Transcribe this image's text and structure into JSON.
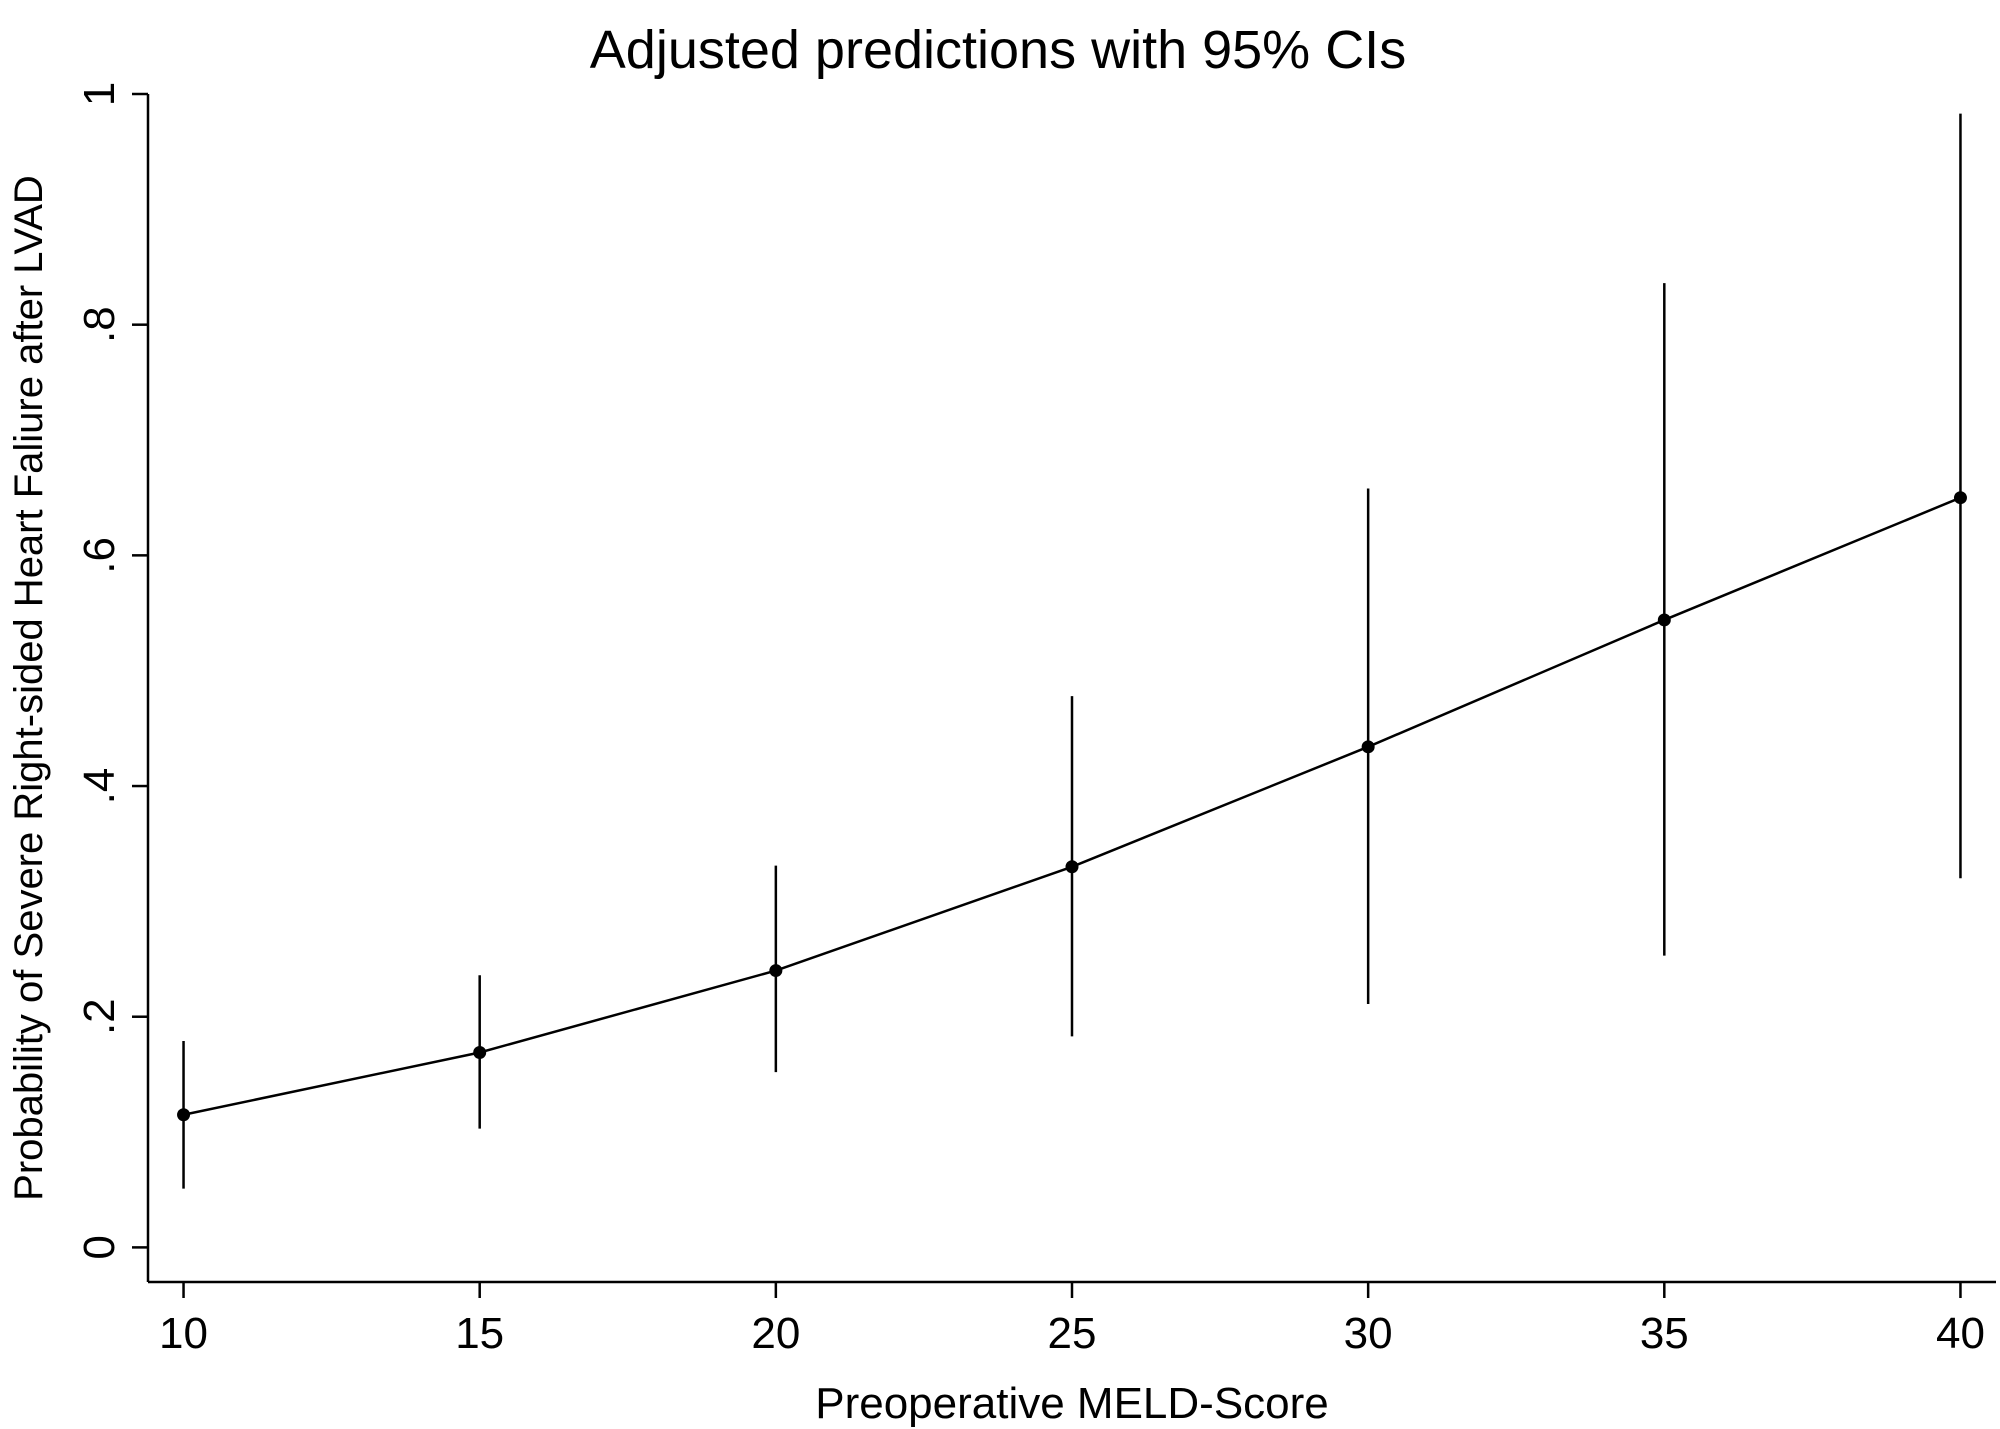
{
  "chart_data": {
    "type": "line",
    "title": "Adjusted predictions with 95% CIs",
    "xlabel": "Preoperative MELD-Score",
    "ylabel": "Probability of Severe Right-sided Heart Faliure after LVAD",
    "x": [
      10,
      15,
      20,
      25,
      30,
      35,
      40
    ],
    "series": [
      {
        "values": [
          0.115,
          0.169,
          0.24,
          0.33,
          0.434,
          0.544,
          0.65
        ],
        "ci_lower": [
          0.051,
          0.103,
          0.152,
          0.183,
          0.211,
          0.253,
          0.32
        ],
        "ci_upper": [
          0.179,
          0.236,
          0.331,
          0.478,
          0.658,
          0.836,
          0.983
        ]
      }
    ],
    "xlim": [
      9.4,
      40.6
    ],
    "ylim": [
      -0.03,
      1.0
    ],
    "xticks": [
      10,
      15,
      20,
      25,
      30,
      35,
      40
    ],
    "xtick_labels": [
      "10",
      "15",
      "20",
      "25",
      "30",
      "35",
      "40"
    ],
    "yticks": [
      0,
      0.2,
      0.4,
      0.6,
      0.8,
      1.0
    ],
    "ytick_labels": [
      "0",
      ".2",
      ".4",
      ".6",
      ".8",
      "1"
    ],
    "grid": false,
    "colors": {
      "line": "#000000",
      "background": "#ffffff"
    }
  }
}
